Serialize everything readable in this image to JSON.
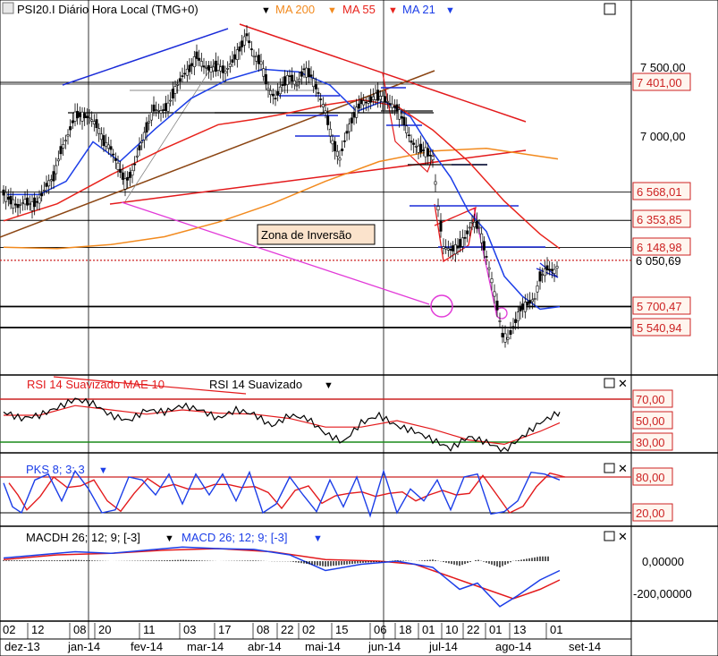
{
  "colors": {
    "price": "#000000",
    "ma200": "#f28a1e",
    "ma55": "#e8231c",
    "ma21": "#1c3ee8",
    "trend_blue": "#1a2bd8",
    "trend_red": "#e31a1c",
    "trend_brown": "#8b4513",
    "trend_magenta": "#e23ad8",
    "rsi": "#000000",
    "rsi_signal": "#e31a1c",
    "pks_k": "#1c3ee8",
    "pks_d": "#e31a1c",
    "macd_hist": "#000000",
    "macd": "#1c3ee8",
    "macd_signal": "#e31a1c",
    "level_red": "#cc2222",
    "level_green": "#1a8a1a"
  },
  "price_panel": {
    "title": "PSI20.I Diário Hora Local (TMG+0)",
    "legend": [
      {
        "label": "MA 200",
        "color": "#f28a1e"
      },
      {
        "label": "MA 55",
        "color": "#e8231c"
      },
      {
        "label": "MA 21",
        "color": "#1c3ee8"
      }
    ],
    "axis_labels": [
      "7 500,00",
      "7 000,00",
      "6 050,69"
    ],
    "level_labels": [
      "7 401,00",
      "6 568,01",
      "6 353,85",
      "6 148,98",
      "5 700,47",
      "5 540,94"
    ],
    "annotation": "Zona de  Inversão"
  },
  "rsi_panel": {
    "legend": [
      {
        "label": "RSI 14 Suavizado MAE 10",
        "color": "#e31a1c"
      },
      {
        "label": "RSI 14 Suavizado",
        "color": "#000000"
      }
    ],
    "levels": [
      "70,00",
      "50,00",
      "30,00"
    ]
  },
  "pks_panel": {
    "legend": [
      {
        "label": "PKS 8; 3; 3",
        "color": "#1c3ee8"
      }
    ],
    "levels": [
      "80,00",
      "20,00"
    ]
  },
  "macd_panel": {
    "legend": [
      {
        "label": "MACDH 26; 12; 9; [-3]",
        "color": "#000000"
      },
      {
        "label": "MACD 26; 12; 9; [-3]",
        "color": "#1c3ee8"
      }
    ],
    "axis_labels": [
      "0,00000",
      "-200,00000"
    ]
  },
  "x_axis": {
    "day_labels": [
      "02",
      "12",
      "08",
      "20",
      "11",
      "03",
      "17",
      "08",
      "22",
      "02",
      "15",
      "06",
      "18",
      "01",
      "10",
      "22",
      "01",
      "13",
      "01"
    ],
    "month_labels": [
      "dez-13",
      "jan-14",
      "fev-14",
      "mar-14",
      "abr-14",
      "mai-14",
      "jun-14",
      "jul-14",
      "ago-14",
      "set-14"
    ]
  },
  "chart_data": {
    "type": "line",
    "title": "PSI20.I Diário Hora Local (TMG+0)",
    "price_range": [
      5400,
      7900
    ],
    "price_points": [
      [
        0,
        6560
      ],
      [
        8,
        6500
      ],
      [
        16,
        6460
      ],
      [
        24,
        6500
      ],
      [
        32,
        6470
      ],
      [
        40,
        6510
      ],
      [
        48,
        6620
      ],
      [
        56,
        6680
      ],
      [
        64,
        6880
      ],
      [
        72,
        7000
      ],
      [
        80,
        7150
      ],
      [
        88,
        7150
      ],
      [
        96,
        7130
      ],
      [
        104,
        7080
      ],
      [
        112,
        6950
      ],
      [
        120,
        6900
      ],
      [
        128,
        6770
      ],
      [
        136,
        6640
      ],
      [
        144,
        6720
      ],
      [
        152,
        6900
      ],
      [
        160,
        7050
      ],
      [
        168,
        7200
      ],
      [
        176,
        7180
      ],
      [
        184,
        7220
      ],
      [
        192,
        7350
      ],
      [
        200,
        7450
      ],
      [
        208,
        7500
      ],
      [
        216,
        7600
      ],
      [
        224,
        7520
      ],
      [
        232,
        7500
      ],
      [
        240,
        7520
      ],
      [
        248,
        7480
      ],
      [
        256,
        7560
      ],
      [
        264,
        7650
      ],
      [
        272,
        7760
      ],
      [
        280,
        7600
      ],
      [
        288,
        7550
      ],
      [
        296,
        7350
      ],
      [
        304,
        7280
      ],
      [
        312,
        7380
      ],
      [
        320,
        7450
      ],
      [
        328,
        7380
      ],
      [
        336,
        7500
      ],
      [
        344,
        7450
      ],
      [
        352,
        7320
      ],
      [
        360,
        7180
      ],
      [
        368,
        6950
      ],
      [
        376,
        6820
      ],
      [
        384,
        7020
      ],
      [
        392,
        7150
      ],
      [
        400,
        7250
      ],
      [
        408,
        7250
      ],
      [
        416,
        7300
      ],
      [
        424,
        7280
      ],
      [
        432,
        7240
      ],
      [
        440,
        7200
      ],
      [
        448,
        7100
      ],
      [
        456,
        6950
      ],
      [
        464,
        6900
      ],
      [
        472,
        6880
      ],
      [
        480,
        6830
      ],
      [
        486,
        6450
      ],
      [
        492,
        6150
      ],
      [
        500,
        6130
      ],
      [
        508,
        6150
      ],
      [
        516,
        6220
      ],
      [
        524,
        6340
      ],
      [
        532,
        6300
      ],
      [
        540,
        6080
      ],
      [
        546,
        5900
      ],
      [
        552,
        5700
      ],
      [
        558,
        5480
      ],
      [
        564,
        5460
      ],
      [
        570,
        5540
      ],
      [
        578,
        5680
      ],
      [
        586,
        5720
      ],
      [
        594,
        5760
      ],
      [
        600,
        5920
      ],
      [
        608,
        5990
      ],
      [
        616,
        5970
      ],
      [
        622,
        6030
      ]
    ],
    "ma200_points": [
      [
        0,
        6150
      ],
      [
        60,
        6140
      ],
      [
        120,
        6170
      ],
      [
        180,
        6230
      ],
      [
        240,
        6340
      ],
      [
        300,
        6480
      ],
      [
        360,
        6650
      ],
      [
        420,
        6800
      ],
      [
        480,
        6880
      ],
      [
        540,
        6900
      ],
      [
        580,
        6860
      ],
      [
        620,
        6820
      ]
    ],
    "ma55_points": [
      [
        0,
        6350
      ],
      [
        60,
        6480
      ],
      [
        120,
        6700
      ],
      [
        180,
        6900
      ],
      [
        240,
        7080
      ],
      [
        280,
        7120
      ],
      [
        320,
        7170
      ],
      [
        360,
        7230
      ],
      [
        400,
        7270
      ],
      [
        440,
        7220
      ],
      [
        480,
        7040
      ],
      [
        520,
        6800
      ],
      [
        560,
        6500
      ],
      [
        600,
        6250
      ],
      [
        622,
        6140
      ]
    ],
    "ma21_points": [
      [
        0,
        6550
      ],
      [
        40,
        6550
      ],
      [
        70,
        6650
      ],
      [
        100,
        6950
      ],
      [
        130,
        6800
      ],
      [
        170,
        7050
      ],
      [
        210,
        7280
      ],
      [
        250,
        7420
      ],
      [
        290,
        7500
      ],
      [
        330,
        7480
      ],
      [
        365,
        7380
      ],
      [
        395,
        7180
      ],
      [
        425,
        7260
      ],
      [
        455,
        7140
      ],
      [
        480,
        6870
      ],
      [
        500,
        6680
      ],
      [
        520,
        6420
      ],
      [
        540,
        6270
      ],
      [
        560,
        5930
      ],
      [
        580,
        5780
      ],
      [
        600,
        5680
      ],
      [
        622,
        5700
      ]
    ],
    "levels": [
      7401.0,
      6568.01,
      6353.85,
      6148.98,
      5700.47,
      5540.94
    ],
    "last_value": 6050.69,
    "rsi_levels": [
      70,
      50,
      30
    ],
    "rsi_points": [
      [
        0,
        58
      ],
      [
        20,
        52
      ],
      [
        40,
        55
      ],
      [
        60,
        62
      ],
      [
        80,
        70
      ],
      [
        100,
        66
      ],
      [
        120,
        55
      ],
      [
        140,
        50
      ],
      [
        160,
        60
      ],
      [
        180,
        58
      ],
      [
        200,
        64
      ],
      [
        220,
        60
      ],
      [
        240,
        52
      ],
      [
        260,
        60
      ],
      [
        280,
        56
      ],
      [
        300,
        45
      ],
      [
        320,
        55
      ],
      [
        340,
        52
      ],
      [
        360,
        38
      ],
      [
        380,
        30
      ],
      [
        400,
        48
      ],
      [
        420,
        55
      ],
      [
        440,
        45
      ],
      [
        460,
        40
      ],
      [
        480,
        32
      ],
      [
        500,
        24
      ],
      [
        520,
        35
      ],
      [
        540,
        30
      ],
      [
        560,
        22
      ],
      [
        580,
        35
      ],
      [
        600,
        48
      ],
      [
        622,
        58
      ]
    ],
    "rsi_signal_points": [
      [
        0,
        55
      ],
      [
        40,
        55
      ],
      [
        80,
        64
      ],
      [
        120,
        60
      ],
      [
        160,
        56
      ],
      [
        200,
        60
      ],
      [
        240,
        57
      ],
      [
        280,
        56
      ],
      [
        320,
        52
      ],
      [
        360,
        44
      ],
      [
        400,
        44
      ],
      [
        440,
        50
      ],
      [
        480,
        42
      ],
      [
        520,
        32
      ],
      [
        560,
        28
      ],
      [
        600,
        40
      ],
      [
        622,
        48
      ]
    ],
    "pks_levels": [
      80,
      20
    ],
    "pks_k_points": [
      [
        0,
        70
      ],
      [
        10,
        30
      ],
      [
        20,
        20
      ],
      [
        35,
        75
      ],
      [
        50,
        85
      ],
      [
        65,
        40
      ],
      [
        80,
        90
      ],
      [
        95,
        60
      ],
      [
        110,
        20
      ],
      [
        125,
        25
      ],
      [
        140,
        80
      ],
      [
        155,
        75
      ],
      [
        170,
        50
      ],
      [
        185,
        85
      ],
      [
        200,
        35
      ],
      [
        215,
        85
      ],
      [
        230,
        50
      ],
      [
        245,
        85
      ],
      [
        260,
        40
      ],
      [
        275,
        88
      ],
      [
        290,
        20
      ],
      [
        305,
        35
      ],
      [
        320,
        80
      ],
      [
        335,
        50
      ],
      [
        350,
        22
      ],
      [
        365,
        75
      ],
      [
        380,
        30
      ],
      [
        395,
        80
      ],
      [
        410,
        15
      ],
      [
        425,
        90
      ],
      [
        440,
        20
      ],
      [
        455,
        60
      ],
      [
        470,
        40
      ],
      [
        485,
        75
      ],
      [
        500,
        25
      ],
      [
        515,
        80
      ],
      [
        530,
        85
      ],
      [
        545,
        18
      ],
      [
        560,
        22
      ],
      [
        575,
        40
      ],
      [
        590,
        88
      ],
      [
        605,
        85
      ],
      [
        622,
        75
      ]
    ],
    "macd_points": [
      [
        0,
        20
      ],
      [
        40,
        40
      ],
      [
        80,
        60
      ],
      [
        120,
        50
      ],
      [
        160,
        70
      ],
      [
        200,
        90
      ],
      [
        240,
        80
      ],
      [
        280,
        75
      ],
      [
        320,
        40
      ],
      [
        360,
        -60
      ],
      [
        400,
        -20
      ],
      [
        440,
        0
      ],
      [
        480,
        -40
      ],
      [
        510,
        -180
      ],
      [
        530,
        -140
      ],
      [
        555,
        -290
      ],
      [
        575,
        -220
      ],
      [
        600,
        -120
      ],
      [
        622,
        -60
      ]
    ],
    "macd_signal_points": [
      [
        0,
        10
      ],
      [
        60,
        40
      ],
      [
        120,
        50
      ],
      [
        180,
        70
      ],
      [
        240,
        80
      ],
      [
        300,
        60
      ],
      [
        360,
        10
      ],
      [
        420,
        0
      ],
      [
        460,
        -20
      ],
      [
        500,
        -100
      ],
      [
        540,
        -180
      ],
      [
        570,
        -240
      ],
      [
        600,
        -180
      ],
      [
        622,
        -120
      ]
    ]
  }
}
